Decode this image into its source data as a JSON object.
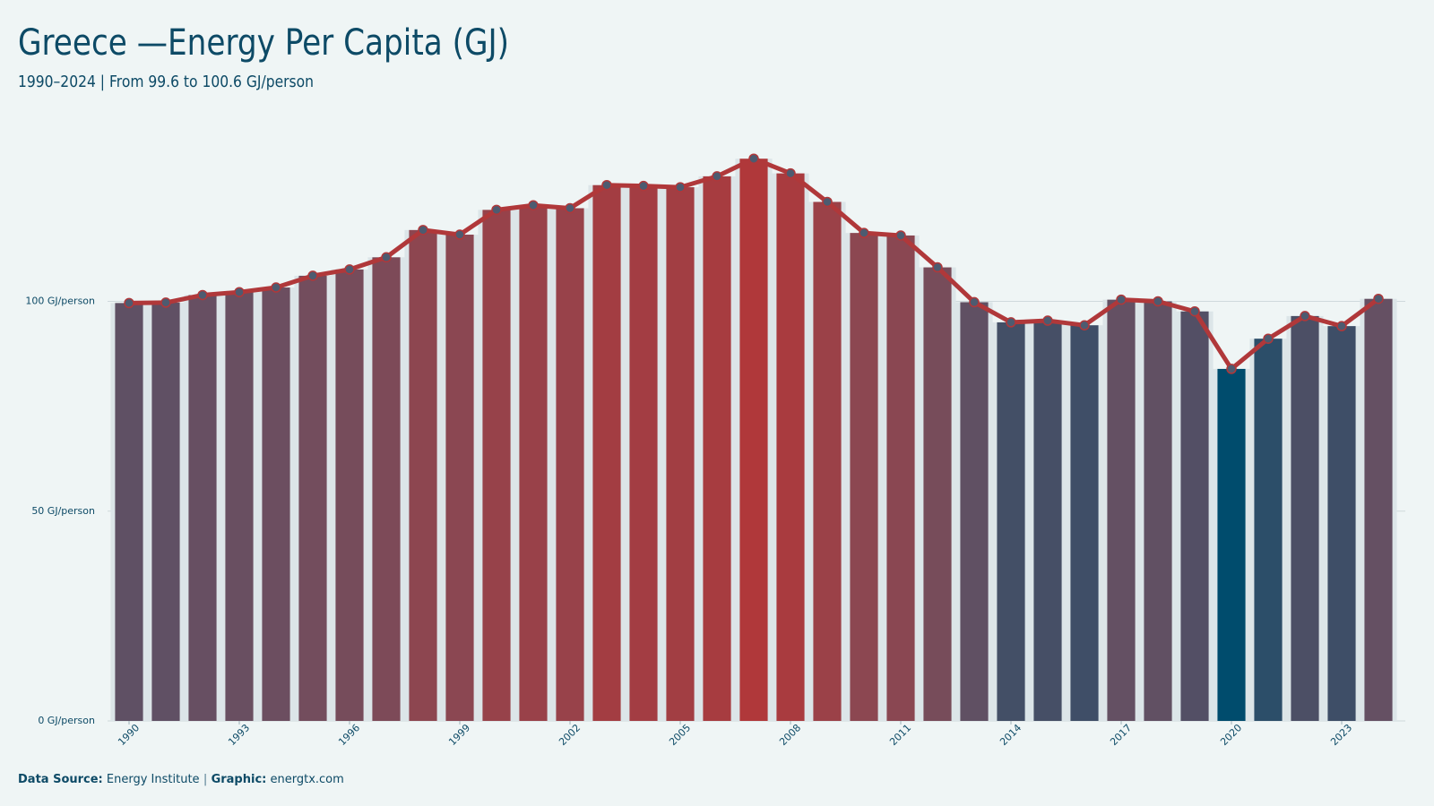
{
  "chart_data": {
    "type": "bar-line",
    "title": "Greece —Energy Per Capita (GJ)",
    "subtitle": "1990–2024 | From 99.6 to 100.6 GJ/person",
    "x": [
      1990,
      1991,
      1992,
      1993,
      1994,
      1995,
      1996,
      1997,
      1998,
      1999,
      2000,
      2001,
      2002,
      2003,
      2004,
      2005,
      2006,
      2007,
      2008,
      2009,
      2010,
      2011,
      2012,
      2013,
      2014,
      2015,
      2016,
      2017,
      2018,
      2019,
      2020,
      2021,
      2022,
      2023,
      2024
    ],
    "values": [
      99.6,
      99.7,
      101.5,
      102.2,
      103.3,
      106.1,
      107.6,
      110.5,
      117.0,
      115.9,
      121.8,
      122.9,
      122.2,
      127.7,
      127.5,
      127.2,
      129.8,
      134.0,
      130.5,
      123.7,
      116.3,
      115.7,
      108.1,
      99.8,
      95.0,
      95.4,
      94.3,
      100.4,
      100.0,
      97.6,
      83.9,
      91.1,
      96.5,
      94.1,
      100.6
    ],
    "xticks": [
      1990,
      1993,
      1996,
      1999,
      2002,
      2005,
      2008,
      2011,
      2014,
      2017,
      2020,
      2023
    ],
    "ylim": [
      0,
      140
    ],
    "yticks": [
      {
        "value": 0,
        "label": "0 GJ/person"
      },
      {
        "value": 50,
        "label": "50 GJ/person"
      },
      {
        "value": 100,
        "label": "100 GJ/person"
      }
    ],
    "grid": true,
    "color_scale": [
      "#004c6d",
      "#655063",
      "#8e4650",
      "#b0383a"
    ],
    "line_color": "#b0383a",
    "marker_color": "#4d5b70",
    "footer": {
      "source_label": "Data Source:",
      "source": "Energy Institute",
      "separator": "|",
      "graphic_label": "Graphic:",
      "graphic": "energtx.com"
    }
  }
}
